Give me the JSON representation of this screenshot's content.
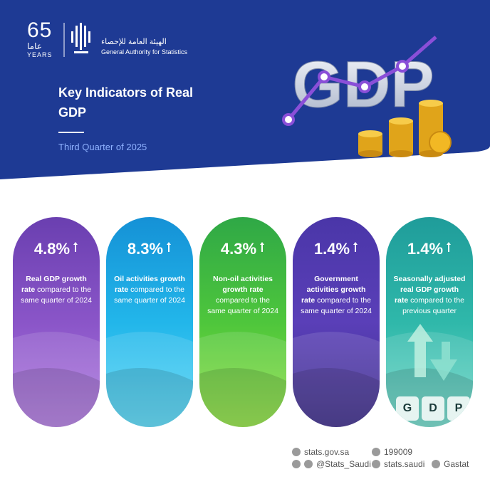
{
  "logo": {
    "years_number": "65",
    "years_arabic": "عاما",
    "years_label": "YEARS",
    "authority_arabic": "الهيئة العامة للإحصاء",
    "authority_english": "General Authority for Statistics"
  },
  "header": {
    "title": "Key Indicators of Real GDP",
    "subtitle": "Third Quarter of 2025",
    "graphic_word": "GDP"
  },
  "cards": [
    {
      "value": "4.8%",
      "label_bold": "Real GDP growth rate",
      "label_rest": "compared to the same quarter of 2024"
    },
    {
      "value": "8.3%",
      "label_bold": "Oil activities growth rate",
      "label_rest": "compared to the same quarter of 2024"
    },
    {
      "value": "4.3%",
      "label_bold": "Non-oil activities growth rate",
      "label_rest": "compared to the same quarter of 2024"
    },
    {
      "value": "1.4%",
      "label_bold": "Government activities growth rate",
      "label_rest": "compared to the same quarter of 2024"
    },
    {
      "value": "1.4%",
      "label_bold": "Seasonally adjusted real GDP growth rate",
      "label_rest": "compared to the previous quarter",
      "tiles": [
        "G",
        "D",
        "P"
      ]
    }
  ],
  "footer": {
    "website": "stats.gov.sa",
    "phone": "199009",
    "twitter": "@Stats_Saudi",
    "facebook": "stats.saudi",
    "linkedin": "Gastat"
  }
}
